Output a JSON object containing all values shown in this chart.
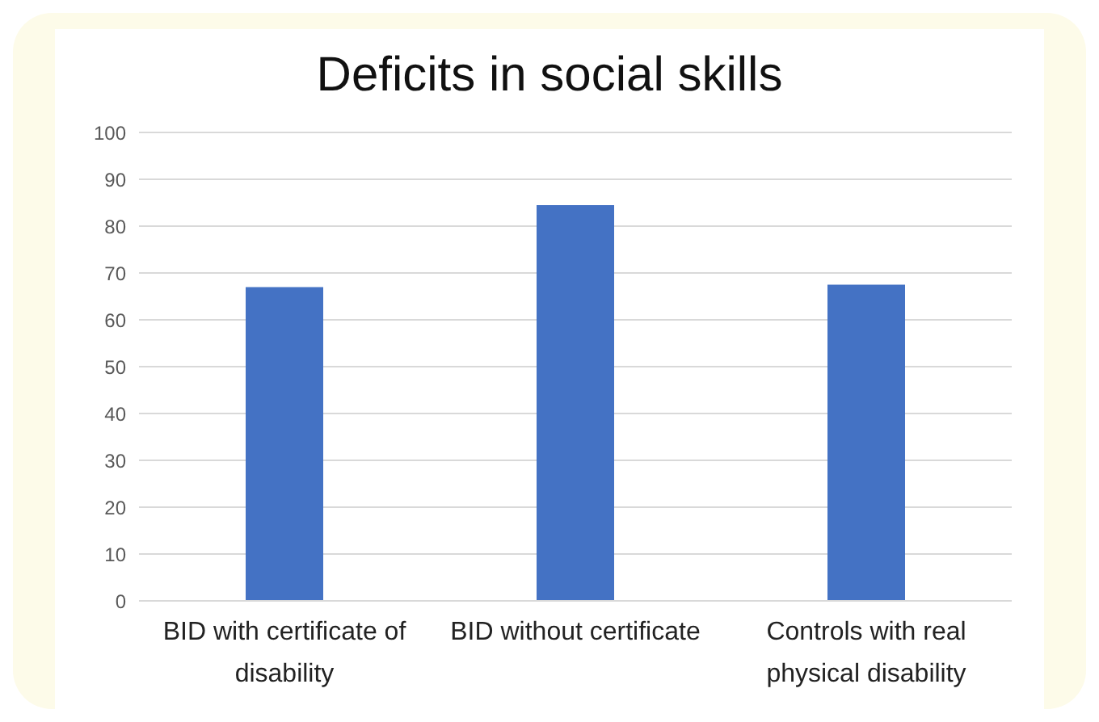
{
  "chart_data": {
    "type": "bar",
    "title": "Deficits in social skills",
    "categories": [
      "BID with certificate of disability",
      "BID without certificate",
      "Controls with real physical disability"
    ],
    "values": [
      67,
      84.5,
      67.5
    ],
    "color": "#4472c4",
    "ylim": [
      0,
      100
    ],
    "yticks": [
      0,
      10,
      20,
      30,
      40,
      50,
      60,
      70,
      80,
      90,
      100
    ],
    "grid": "y"
  }
}
